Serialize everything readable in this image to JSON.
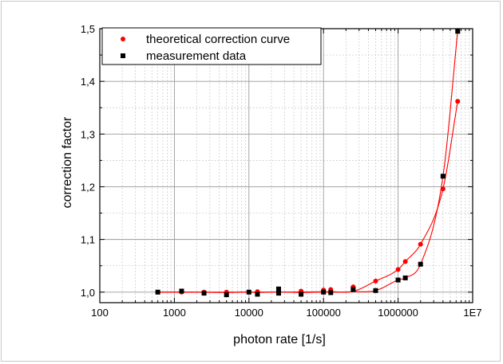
{
  "chart_data": {
    "type": "scatter",
    "xlabel": "photon rate [1/s]",
    "ylabel": "correction factor",
    "xscale": "log",
    "xlim": [
      100,
      10000000
    ],
    "ylim": [
      0.98,
      1.5
    ],
    "x_ticks": [
      100,
      1000,
      10000,
      100000,
      1000000,
      10000000
    ],
    "x_tick_labels": [
      "100",
      "1000",
      "10000",
      "100000",
      "1000000",
      "1E7"
    ],
    "y_ticks": [
      1.0,
      1.1,
      1.2,
      1.3,
      1.4,
      1.5
    ],
    "y_tick_labels": [
      "1,0",
      "1,1",
      "1,2",
      "1,3",
      "1,4",
      "1,5"
    ],
    "grid": true,
    "legend_position": "top-left",
    "series": [
      {
        "name": "theoretical correction curve",
        "marker": "circle",
        "color": "#ff0000",
        "fit_line": true,
        "x": [
          600,
          1250,
          2500,
          5000,
          13000,
          25000,
          50000,
          100000,
          125000,
          250000,
          500000,
          1000000,
          1250000,
          2000000,
          4000000,
          6300000
        ],
        "y": [
          1.0,
          1.0,
          1.0,
          1.0,
          1.001,
          1.001,
          1.002,
          1.004,
          1.005,
          1.01,
          1.021,
          1.043,
          1.058,
          1.091,
          1.196,
          1.362
        ]
      },
      {
        "name": "measurement data",
        "marker": "square",
        "color": "#000000",
        "fit_line": true,
        "x": [
          600,
          1250,
          2500,
          5000,
          10000,
          13000,
          25000,
          25000,
          50000,
          100000,
          125000,
          250000,
          500000,
          1000000,
          1250000,
          2000000,
          4000000,
          6300000
        ],
        "y": [
          1.0,
          1.002,
          0.998,
          0.995,
          1.0,
          0.996,
          1.006,
          0.998,
          0.996,
          1.0,
          0.999,
          1.005,
          1.003,
          1.023,
          1.027,
          1.053,
          1.22,
          1.495
        ]
      }
    ]
  }
}
